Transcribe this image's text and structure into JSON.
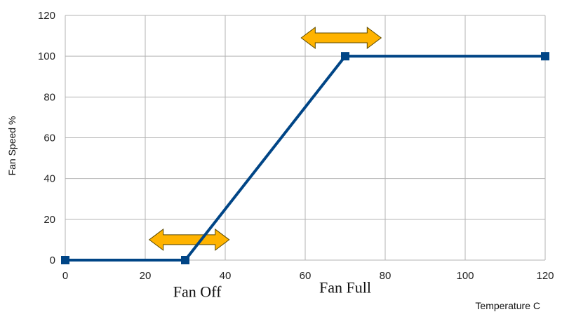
{
  "chart_data": {
    "type": "line",
    "xlabel": "Temperature C",
    "ylabel": "Fan Speed %",
    "xlim": [
      0,
      120
    ],
    "ylim": [
      0,
      120
    ],
    "x_ticks": [
      "0",
      "20",
      "40",
      "60",
      "80",
      "100",
      "120"
    ],
    "y_ticks": [
      "0",
      "20",
      "40",
      "60",
      "80",
      "100",
      "120"
    ],
    "grid": true,
    "legend": "none",
    "series": [
      {
        "x": [
          0,
          30,
          70,
          120
        ],
        "y": [
          0,
          0,
          100,
          100
        ],
        "color": "#004586"
      }
    ],
    "annotations": [
      {
        "text": "Fan Off",
        "x": 33,
        "y": -18
      },
      {
        "text": "Fan Full",
        "x": 70,
        "y": -16
      }
    ],
    "range_arrows": [
      {
        "x_from": 21,
        "x_to": 41,
        "y": 10,
        "color": "#ffb300"
      },
      {
        "x_from": 59,
        "x_to": 79,
        "y": 109,
        "color": "#ffb300"
      }
    ]
  }
}
